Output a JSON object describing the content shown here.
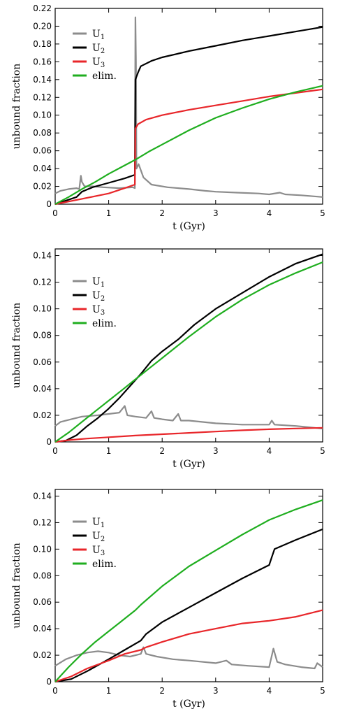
{
  "chart_data": [
    {
      "type": "line",
      "xlabel": "t (Gyr)",
      "ylabel": "unbound fraction",
      "xlim": [
        0,
        5
      ],
      "ylim": [
        0,
        0.22
      ],
      "xticks": [
        0,
        1,
        2,
        3,
        4,
        5
      ],
      "xtick_labels": [
        "0",
        "1",
        "2",
        "3",
        "4",
        "5"
      ],
      "yticks": [
        0,
        0.02,
        0.04,
        0.06,
        0.08,
        0.1,
        0.12,
        0.14,
        0.16,
        0.18,
        0.2,
        0.22
      ],
      "ytick_labels": [
        "0",
        "0.02",
        "0.04",
        "0.06",
        "0.08",
        "0.10",
        "0.12",
        "0.14",
        "0.16",
        "0.18",
        "0.20",
        "0.22"
      ],
      "legend": "top-left",
      "grid": false,
      "series": [
        {
          "name": "U",
          "sub": "1",
          "color": "#8c8c8c",
          "points": [
            [
              0,
              0.012
            ],
            [
              0.1,
              0.015
            ],
            [
              0.25,
              0.017
            ],
            [
              0.4,
              0.018
            ],
            [
              0.45,
              0.017
            ],
            [
              0.48,
              0.032
            ],
            [
              0.5,
              0.025
            ],
            [
              0.55,
              0.02
            ],
            [
              0.7,
              0.02
            ],
            [
              0.9,
              0.019
            ],
            [
              1.2,
              0.018
            ],
            [
              1.45,
              0.019
            ],
            [
              1.49,
              0.018
            ],
            [
              1.5,
              0.21
            ],
            [
              1.51,
              0.16
            ],
            [
              1.52,
              0.04
            ],
            [
              1.56,
              0.045
            ],
            [
              1.65,
              0.03
            ],
            [
              1.8,
              0.022
            ],
            [
              2.1,
              0.019
            ],
            [
              2.5,
              0.017
            ],
            [
              2.8,
              0.015
            ],
            [
              3.0,
              0.014
            ],
            [
              3.4,
              0.013
            ],
            [
              3.8,
              0.012
            ],
            [
              4.0,
              0.011
            ],
            [
              4.2,
              0.013
            ],
            [
              4.3,
              0.011
            ],
            [
              4.6,
              0.01
            ],
            [
              5.0,
              0.008
            ]
          ]
        },
        {
          "name": "U",
          "sub": "2",
          "color": "#000000",
          "points": [
            [
              0,
              0
            ],
            [
              0.2,
              0.004
            ],
            [
              0.4,
              0.008
            ],
            [
              0.5,
              0.014
            ],
            [
              0.7,
              0.019
            ],
            [
              1.0,
              0.024
            ],
            [
              1.3,
              0.029
            ],
            [
              1.49,
              0.033
            ],
            [
              1.5,
              0.14
            ],
            [
              1.55,
              0.148
            ],
            [
              1.6,
              0.155
            ],
            [
              1.8,
              0.161
            ],
            [
              2.0,
              0.165
            ],
            [
              2.5,
              0.172
            ],
            [
              3.0,
              0.178
            ],
            [
              3.5,
              0.184
            ],
            [
              4.0,
              0.189
            ],
            [
              4.5,
              0.194
            ],
            [
              5.0,
              0.199
            ]
          ]
        },
        {
          "name": "U",
          "sub": "3",
          "color": "#e8262a",
          "points": [
            [
              0,
              0
            ],
            [
              0.5,
              0.006
            ],
            [
              1.0,
              0.012
            ],
            [
              1.3,
              0.018
            ],
            [
              1.49,
              0.022
            ],
            [
              1.5,
              0.085
            ],
            [
              1.55,
              0.09
            ],
            [
              1.7,
              0.095
            ],
            [
              2.0,
              0.1
            ],
            [
              2.5,
              0.106
            ],
            [
              3.0,
              0.111
            ],
            [
              3.5,
              0.116
            ],
            [
              4.0,
              0.121
            ],
            [
              4.5,
              0.125
            ],
            [
              5.0,
              0.129
            ]
          ]
        },
        {
          "name": "elim.",
          "sub": "",
          "color": "#1fae1f",
          "points": [
            [
              0,
              0
            ],
            [
              0.25,
              0.008
            ],
            [
              0.5,
              0.017
            ],
            [
              0.75,
              0.025
            ],
            [
              1.0,
              0.034
            ],
            [
              1.25,
              0.042
            ],
            [
              1.5,
              0.05
            ],
            [
              1.75,
              0.059
            ],
            [
              2.0,
              0.067
            ],
            [
              2.5,
              0.083
            ],
            [
              3.0,
              0.097
            ],
            [
              3.5,
              0.108
            ],
            [
              4.0,
              0.118
            ],
            [
              4.5,
              0.126
            ],
            [
              5.0,
              0.133
            ]
          ]
        }
      ]
    },
    {
      "type": "line",
      "xlabel": "t (Gyr)",
      "ylabel": "unbound fraction",
      "xlim": [
        0,
        5
      ],
      "ylim": [
        0,
        0.145
      ],
      "xticks": [
        0,
        1,
        2,
        3,
        4,
        5
      ],
      "xtick_labels": [
        "0",
        "1",
        "2",
        "3",
        "4",
        "5"
      ],
      "yticks": [
        0,
        0.02,
        0.04,
        0.06,
        0.08,
        0.1,
        0.12,
        0.14
      ],
      "ytick_labels": [
        "0",
        "0.02",
        "0.04",
        "0.06",
        "0.08",
        "0.10",
        "0.12",
        "0.14"
      ],
      "legend": "top-left",
      "grid": false,
      "series": [
        {
          "name": "U",
          "sub": "1",
          "color": "#8c8c8c",
          "points": [
            [
              0,
              0.012
            ],
            [
              0.1,
              0.015
            ],
            [
              0.3,
              0.017
            ],
            [
              0.5,
              0.019
            ],
            [
              0.8,
              0.02
            ],
            [
              1.0,
              0.021
            ],
            [
              1.2,
              0.022
            ],
            [
              1.3,
              0.027
            ],
            [
              1.35,
              0.02
            ],
            [
              1.5,
              0.019
            ],
            [
              1.7,
              0.018
            ],
            [
              1.8,
              0.023
            ],
            [
              1.85,
              0.018
            ],
            [
              2.0,
              0.017
            ],
            [
              2.2,
              0.016
            ],
            [
              2.3,
              0.021
            ],
            [
              2.35,
              0.016
            ],
            [
              2.5,
              0.016
            ],
            [
              3.0,
              0.014
            ],
            [
              3.5,
              0.013
            ],
            [
              4.0,
              0.013
            ],
            [
              4.05,
              0.016
            ],
            [
              4.1,
              0.013
            ],
            [
              4.5,
              0.012
            ],
            [
              5.0,
              0.01
            ]
          ]
        },
        {
          "name": "U",
          "sub": "2",
          "color": "#000000",
          "points": [
            [
              0,
              0
            ],
            [
              0.2,
              0.001
            ],
            [
              0.4,
              0.005
            ],
            [
              0.6,
              0.012
            ],
            [
              0.8,
              0.018
            ],
            [
              1.0,
              0.025
            ],
            [
              1.2,
              0.033
            ],
            [
              1.4,
              0.042
            ],
            [
              1.6,
              0.051
            ],
            [
              1.8,
              0.061
            ],
            [
              2.0,
              0.068
            ],
            [
              2.3,
              0.077
            ],
            [
              2.6,
              0.088
            ],
            [
              3.0,
              0.1
            ],
            [
              3.5,
              0.112
            ],
            [
              4.0,
              0.124
            ],
            [
              4.5,
              0.134
            ],
            [
              5.0,
              0.141
            ]
          ]
        },
        {
          "name": "U",
          "sub": "3",
          "color": "#e8262a",
          "points": [
            [
              0,
              0
            ],
            [
              0.3,
              0.0015
            ],
            [
              0.6,
              0.0025
            ],
            [
              1.0,
              0.0035
            ],
            [
              1.5,
              0.0048
            ],
            [
              2.0,
              0.0058
            ],
            [
              2.5,
              0.0068
            ],
            [
              3.0,
              0.0078
            ],
            [
              3.5,
              0.0087
            ],
            [
              4.0,
              0.0095
            ],
            [
              4.5,
              0.0101
            ],
            [
              5.0,
              0.0106
            ]
          ]
        },
        {
          "name": "elim.",
          "sub": "",
          "color": "#1fae1f",
          "points": [
            [
              0,
              0
            ],
            [
              0.25,
              0.007
            ],
            [
              0.5,
              0.015
            ],
            [
              0.75,
              0.023
            ],
            [
              1.0,
              0.031
            ],
            [
              1.25,
              0.039
            ],
            [
              1.5,
              0.047
            ],
            [
              1.75,
              0.055
            ],
            [
              2.0,
              0.063
            ],
            [
              2.5,
              0.079
            ],
            [
              3.0,
              0.094
            ],
            [
              3.5,
              0.107
            ],
            [
              4.0,
              0.118
            ],
            [
              4.5,
              0.127
            ],
            [
              5.0,
              0.135
            ]
          ]
        }
      ]
    },
    {
      "type": "line",
      "xlabel": "t (Gyr)",
      "ylabel": "unbound fraction",
      "xlim": [
        0,
        5
      ],
      "ylim": [
        0,
        0.145
      ],
      "xticks": [
        0,
        1,
        2,
        3,
        4,
        5
      ],
      "xtick_labels": [
        "0",
        "1",
        "2",
        "3",
        "4",
        "5"
      ],
      "yticks": [
        0,
        0.02,
        0.04,
        0.06,
        0.08,
        0.1,
        0.12,
        0.14
      ],
      "ytick_labels": [
        "0",
        "0.02",
        "0.04",
        "0.06",
        "0.08",
        "0.10",
        "0.12",
        "0.14"
      ],
      "legend": "top-left",
      "grid": false,
      "series": [
        {
          "name": "U",
          "sub": "1",
          "color": "#8c8c8c",
          "points": [
            [
              0,
              0.012
            ],
            [
              0.2,
              0.017
            ],
            [
              0.4,
              0.02
            ],
            [
              0.6,
              0.022
            ],
            [
              0.8,
              0.023
            ],
            [
              1.0,
              0.022
            ],
            [
              1.2,
              0.02
            ],
            [
              1.4,
              0.019
            ],
            [
              1.6,
              0.021
            ],
            [
              1.65,
              0.026
            ],
            [
              1.7,
              0.021
            ],
            [
              1.9,
              0.019
            ],
            [
              2.2,
              0.017
            ],
            [
              2.5,
              0.016
            ],
            [
              3.0,
              0.014
            ],
            [
              3.2,
              0.016
            ],
            [
              3.3,
              0.013
            ],
            [
              3.6,
              0.012
            ],
            [
              4.0,
              0.011
            ],
            [
              4.08,
              0.025
            ],
            [
              4.15,
              0.015
            ],
            [
              4.3,
              0.013
            ],
            [
              4.6,
              0.011
            ],
            [
              4.85,
              0.01
            ],
            [
              4.9,
              0.014
            ],
            [
              5.0,
              0.011
            ]
          ]
        },
        {
          "name": "U",
          "sub": "2",
          "color": "#000000",
          "points": [
            [
              0,
              0
            ],
            [
              0.3,
              0.002
            ],
            [
              0.6,
              0.008
            ],
            [
              1.0,
              0.017
            ],
            [
              1.3,
              0.024
            ],
            [
              1.6,
              0.031
            ],
            [
              1.7,
              0.036
            ],
            [
              2.0,
              0.045
            ],
            [
              2.5,
              0.056
            ],
            [
              3.0,
              0.067
            ],
            [
              3.5,
              0.078
            ],
            [
              4.0,
              0.088
            ],
            [
              4.05,
              0.094
            ],
            [
              4.1,
              0.1
            ],
            [
              4.5,
              0.107
            ],
            [
              5.0,
              0.115
            ]
          ]
        },
        {
          "name": "U",
          "sub": "3",
          "color": "#e8262a",
          "points": [
            [
              0,
              0
            ],
            [
              0.3,
              0.004
            ],
            [
              0.6,
              0.01
            ],
            [
              1.0,
              0.016
            ],
            [
              1.3,
              0.021
            ],
            [
              1.6,
              0.024
            ],
            [
              1.7,
              0.026
            ],
            [
              2.0,
              0.03
            ],
            [
              2.5,
              0.036
            ],
            [
              3.0,
              0.04
            ],
            [
              3.5,
              0.044
            ],
            [
              4.0,
              0.046
            ],
            [
              4.5,
              0.049
            ],
            [
              5.0,
              0.054
            ]
          ]
        },
        {
          "name": "elim.",
          "sub": "",
          "color": "#1fae1f",
          "points": [
            [
              0,
              0
            ],
            [
              0.25,
              0.011
            ],
            [
              0.5,
              0.021
            ],
            [
              0.75,
              0.03
            ],
            [
              1.0,
              0.038
            ],
            [
              1.25,
              0.046
            ],
            [
              1.5,
              0.054
            ],
            [
              1.6,
              0.058
            ],
            [
              2.0,
              0.072
            ],
            [
              2.5,
              0.087
            ],
            [
              3.0,
              0.099
            ],
            [
              3.5,
              0.111
            ],
            [
              4.0,
              0.122
            ],
            [
              4.5,
              0.13
            ],
            [
              5.0,
              0.137
            ]
          ]
        }
      ]
    }
  ]
}
